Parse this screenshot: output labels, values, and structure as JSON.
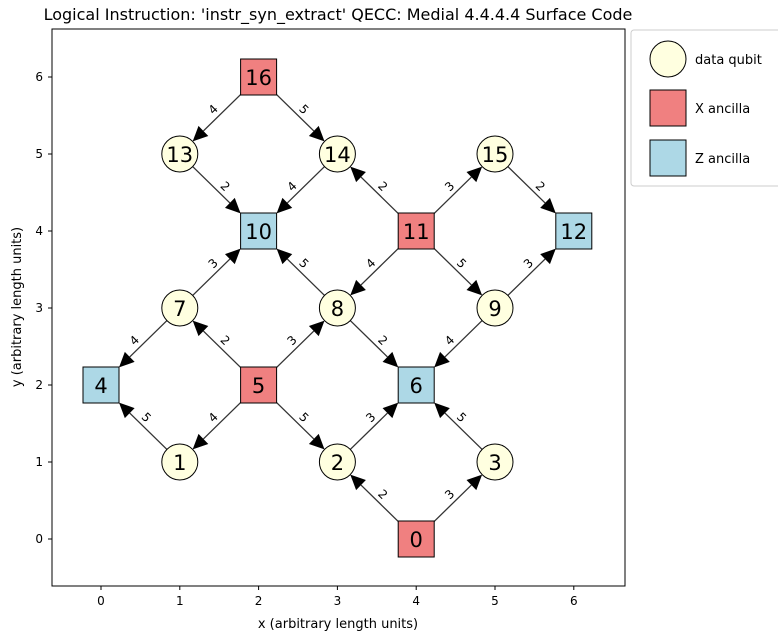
{
  "title": "Logical Instruction: 'instr_syn_extract'  QECC: Medial 4.4.4.4 Surface Code",
  "x_axis": {
    "label": "x (arbitrary length units)",
    "ticks": [
      0,
      1,
      2,
      3,
      4,
      5,
      6
    ],
    "range": [
      -0.65,
      6.65
    ]
  },
  "y_axis": {
    "label": "y (arbitrary length units)",
    "ticks": [
      0,
      1,
      2,
      3,
      4,
      5,
      6
    ],
    "range": [
      -0.6,
      6.6
    ]
  },
  "legend": {
    "placement": "outside-top-right",
    "items": [
      {
        "label": "data qubit",
        "marker": "circle",
        "color": "#ffffe0"
      },
      {
        "label": "X ancilla",
        "marker": "square",
        "color": "#f08080"
      },
      {
        "label": "Z ancilla",
        "marker": "square",
        "color": "#add8e6"
      }
    ]
  },
  "nodes": [
    {
      "id": "0",
      "x": 4,
      "y": 0,
      "kind": "X ancilla"
    },
    {
      "id": "1",
      "x": 1,
      "y": 1,
      "kind": "data qubit"
    },
    {
      "id": "2",
      "x": 3,
      "y": 1,
      "kind": "data qubit"
    },
    {
      "id": "3",
      "x": 5,
      "y": 1,
      "kind": "data qubit"
    },
    {
      "id": "4",
      "x": 0,
      "y": 2,
      "kind": "Z ancilla"
    },
    {
      "id": "5",
      "x": 2,
      "y": 2,
      "kind": "X ancilla"
    },
    {
      "id": "6",
      "x": 4,
      "y": 2,
      "kind": "Z ancilla"
    },
    {
      "id": "7",
      "x": 1,
      "y": 3,
      "kind": "data qubit"
    },
    {
      "id": "8",
      "x": 3,
      "y": 3,
      "kind": "data qubit"
    },
    {
      "id": "9",
      "x": 5,
      "y": 3,
      "kind": "data qubit"
    },
    {
      "id": "10",
      "x": 2,
      "y": 4,
      "kind": "Z ancilla"
    },
    {
      "id": "11",
      "x": 4,
      "y": 4,
      "kind": "X ancilla"
    },
    {
      "id": "12",
      "x": 6,
      "y": 4,
      "kind": "Z ancilla"
    },
    {
      "id": "13",
      "x": 1,
      "y": 5,
      "kind": "data qubit"
    },
    {
      "id": "14",
      "x": 3,
      "y": 5,
      "kind": "data qubit"
    },
    {
      "id": "15",
      "x": 5,
      "y": 5,
      "kind": "data qubit"
    },
    {
      "id": "16",
      "x": 2,
      "y": 6,
      "kind": "X ancilla"
    }
  ],
  "edges": [
    {
      "from": "0",
      "to": "2",
      "label": "2"
    },
    {
      "from": "0",
      "to": "3",
      "label": "3"
    },
    {
      "from": "5",
      "to": "7",
      "label": "2"
    },
    {
      "from": "5",
      "to": "8",
      "label": "3"
    },
    {
      "from": "5",
      "to": "1",
      "label": "4"
    },
    {
      "from": "5",
      "to": "2",
      "label": "5"
    },
    {
      "from": "11",
      "to": "14",
      "label": "2"
    },
    {
      "from": "11",
      "to": "15",
      "label": "3"
    },
    {
      "from": "11",
      "to": "8",
      "label": "4"
    },
    {
      "from": "11",
      "to": "9",
      "label": "5"
    },
    {
      "from": "16",
      "to": "13",
      "label": "4"
    },
    {
      "from": "16",
      "to": "14",
      "label": "5"
    },
    {
      "from": "1",
      "to": "4",
      "label": "5"
    },
    {
      "from": "7",
      "to": "4",
      "label": "4"
    },
    {
      "from": "8",
      "to": "6",
      "label": "2"
    },
    {
      "from": "2",
      "to": "6",
      "label": "3"
    },
    {
      "from": "9",
      "to": "6",
      "label": "4"
    },
    {
      "from": "3",
      "to": "6",
      "label": "5"
    },
    {
      "from": "13",
      "to": "10",
      "label": "2"
    },
    {
      "from": "7",
      "to": "10",
      "label": "3"
    },
    {
      "from": "14",
      "to": "10",
      "label": "4"
    },
    {
      "from": "8",
      "to": "10",
      "label": "5"
    },
    {
      "from": "15",
      "to": "12",
      "label": "2"
    },
    {
      "from": "9",
      "to": "12",
      "label": "3"
    }
  ]
}
